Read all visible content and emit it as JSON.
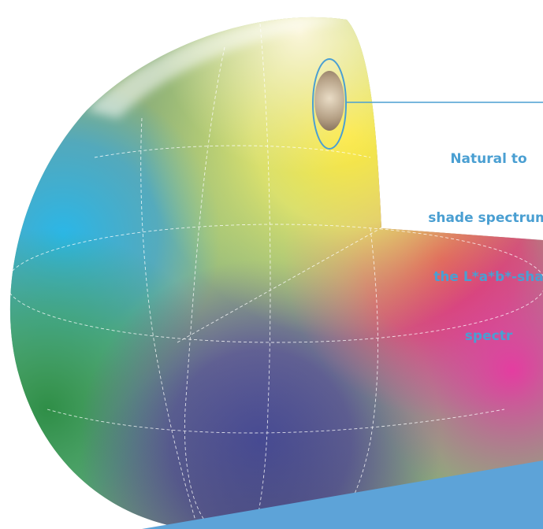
{
  "callout": {
    "lines": [
      "Natural to",
      "shade spectrum",
      "the L*a*b*-sha",
      "spectr"
    ]
  },
  "colors": {
    "accent": "#4a9fd2",
    "footer_band": "#5da3d8",
    "guide_lines": "#ffffff"
  }
}
